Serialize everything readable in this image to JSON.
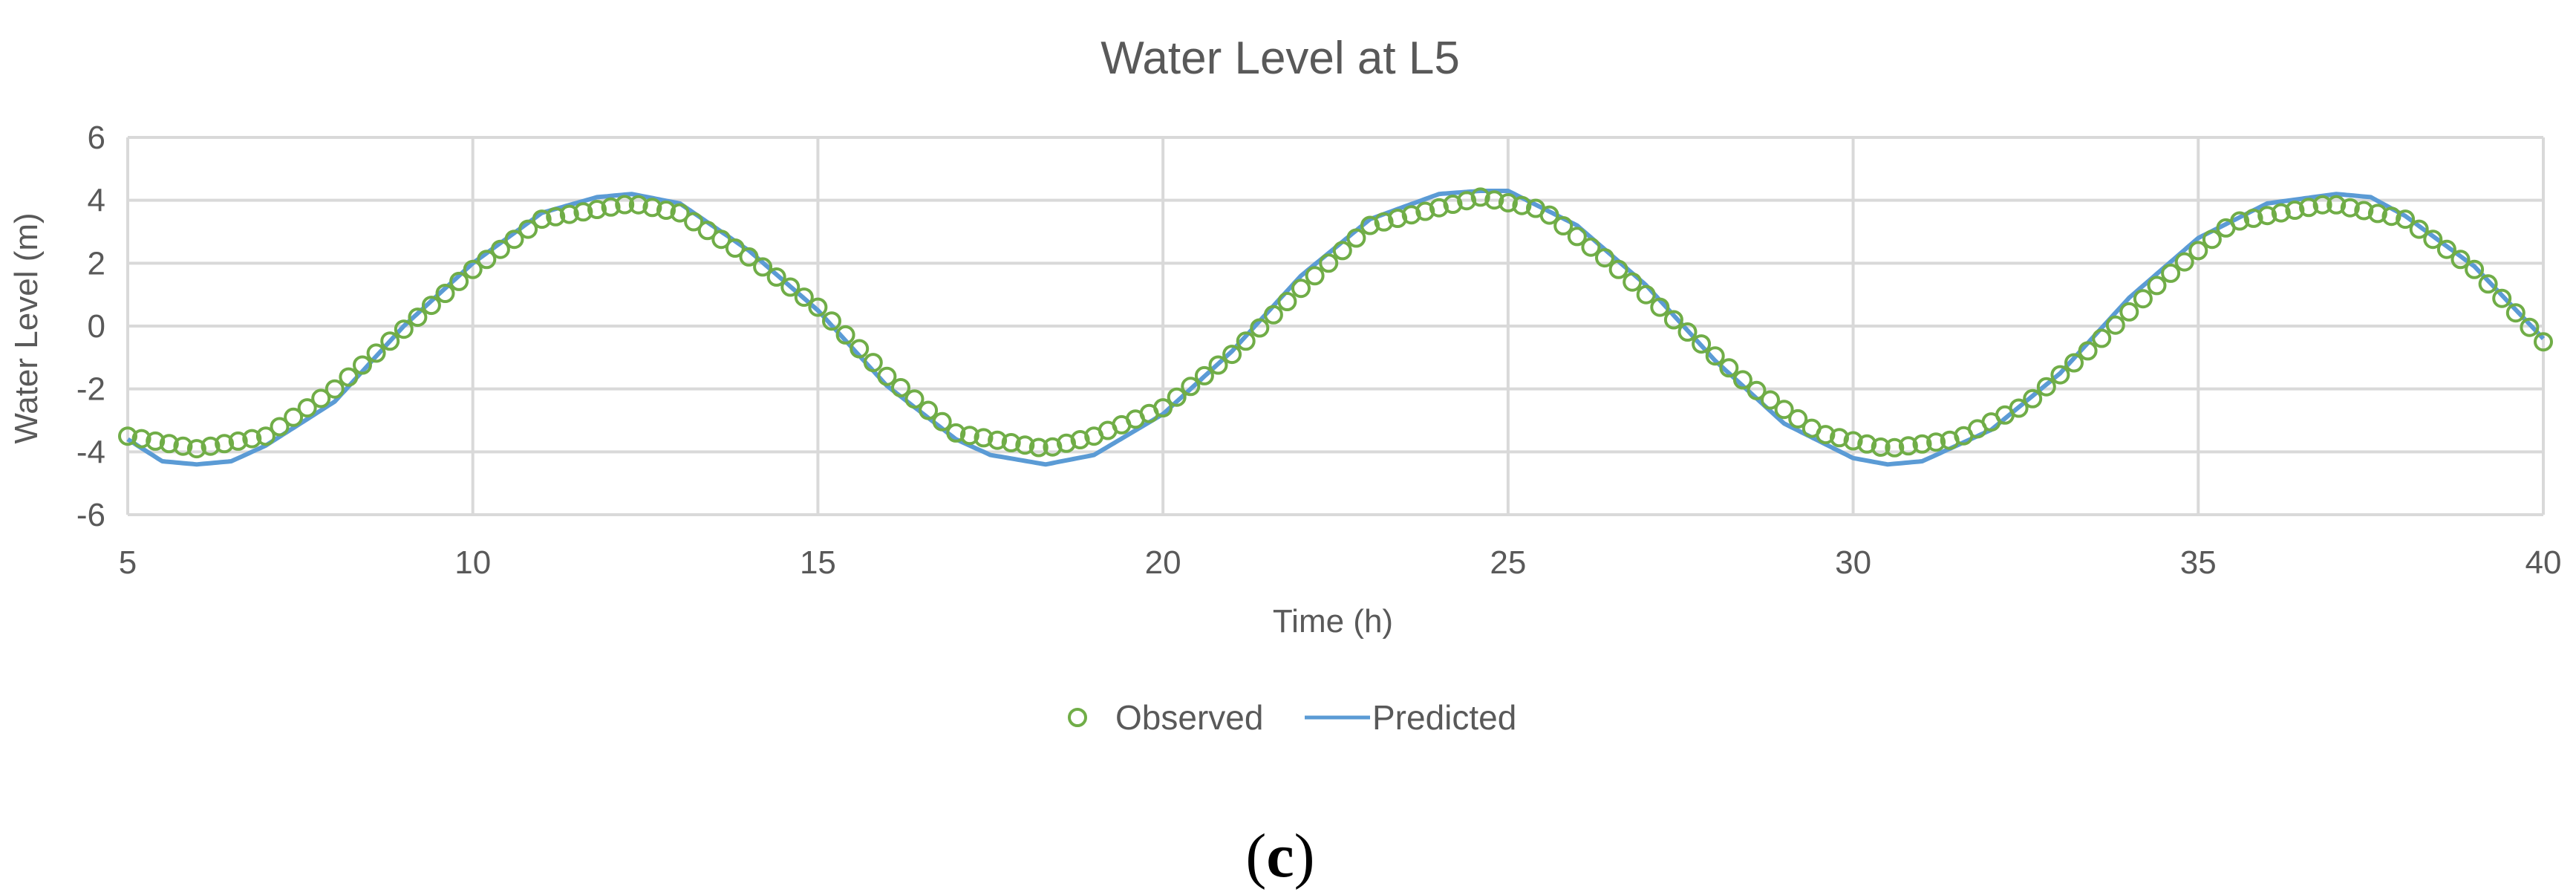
{
  "chart_data": {
    "type": "line",
    "title": "Water Level at L5",
    "xlabel": "Time (h)",
    "ylabel": "Water Level (m)",
    "xlim": [
      5,
      40
    ],
    "ylim": [
      -6,
      6
    ],
    "x_ticks": [
      "5",
      "10",
      "15",
      "20",
      "25",
      "30",
      "35",
      "40"
    ],
    "y_ticks": [
      "6",
      "4",
      "2",
      "0",
      "-2",
      "-4",
      "-6"
    ],
    "grid": true,
    "legend_position": "bottom",
    "series": [
      {
        "name": "Observed",
        "style": "markers",
        "color": "#70ad47",
        "x": [
          5.0,
          6.0,
          7.0,
          8.0,
          9.0,
          10.0,
          11.0,
          12.3,
          13.0,
          14.0,
          15.0,
          16.0,
          17.0,
          18.3,
          19.0,
          20.0,
          21.0,
          22.0,
          23.0,
          24.6,
          25.5,
          26.5,
          27.5,
          28.5,
          29.5,
          30.5,
          31.5,
          32.5,
          33.5,
          34.5,
          35.5,
          36.9,
          38.0,
          39.0,
          40.0
        ],
        "y": [
          -3.5,
          -3.9,
          -3.5,
          -2.0,
          -0.1,
          1.8,
          3.4,
          3.9,
          3.6,
          2.2,
          0.6,
          -1.6,
          -3.4,
          -3.9,
          -3.5,
          -2.6,
          -0.9,
          1.2,
          3.2,
          4.1,
          3.7,
          2.0,
          0.0,
          -1.9,
          -3.4,
          -3.9,
          -3.6,
          -2.5,
          -0.6,
          1.5,
          3.3,
          3.9,
          3.4,
          1.8,
          -0.5
        ]
      },
      {
        "name": "Predicted",
        "style": "line",
        "color": "#5b9bd5",
        "x": [
          5.0,
          5.5,
          6.0,
          6.5,
          7.0,
          8.0,
          9.0,
          10.0,
          11.0,
          11.8,
          12.3,
          13.0,
          14.0,
          15.0,
          16.0,
          17.0,
          17.5,
          18.3,
          19.0,
          20.0,
          21.0,
          22.0,
          23.0,
          24.0,
          24.6,
          25.0,
          26.0,
          27.0,
          28.0,
          29.0,
          30.0,
          30.5,
          31.0,
          32.0,
          33.0,
          34.0,
          35.0,
          36.0,
          37.0,
          37.5,
          38.0,
          39.0,
          40.0
        ],
        "y": [
          -3.6,
          -4.3,
          -4.4,
          -4.3,
          -3.8,
          -2.4,
          0.0,
          2.0,
          3.6,
          4.1,
          4.2,
          3.9,
          2.4,
          0.5,
          -1.9,
          -3.6,
          -4.1,
          -4.4,
          -4.1,
          -2.8,
          -0.8,
          1.6,
          3.4,
          4.2,
          4.3,
          4.3,
          3.2,
          1.3,
          -1.1,
          -3.1,
          -4.2,
          -4.4,
          -4.3,
          -3.3,
          -1.5,
          0.9,
          2.8,
          3.9,
          4.2,
          4.1,
          3.5,
          1.9,
          -0.4
        ]
      }
    ]
  },
  "caption": {
    "open_paren": "(",
    "letter": "c",
    "close_paren": ")"
  }
}
